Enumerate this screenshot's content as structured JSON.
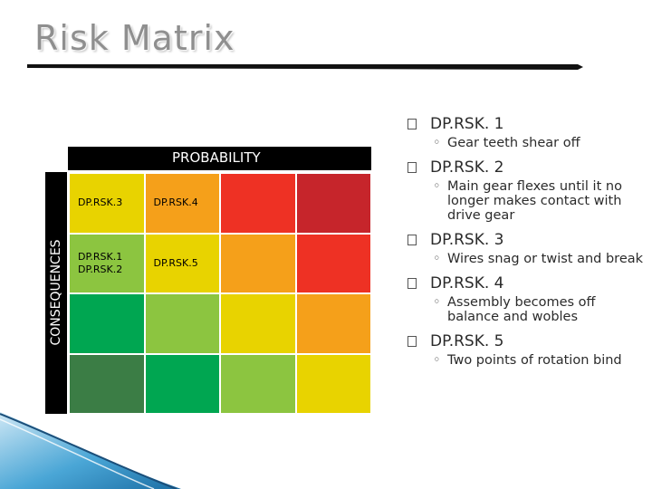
{
  "slide": {
    "title": "Risk Matrix"
  },
  "matrix": {
    "probability_label": "PROBABILITY",
    "consequences_label": "CONSEQUENCES",
    "rows": [
      {
        "cells": [
          {
            "color": "#e8d300",
            "labels": [
              "DP.RSK.3"
            ]
          },
          {
            "color": "#f5a01a",
            "labels": [
              "DP.RSK.4"
            ]
          },
          {
            "color": "#ee3124",
            "labels": []
          },
          {
            "color": "#c6252b",
            "labels": []
          }
        ]
      },
      {
        "cells": [
          {
            "color": "#8cc540",
            "labels": [
              "DP.RSK.1",
              "DP.RSK.2"
            ]
          },
          {
            "color": "#e8d300",
            "labels": [
              "DP.RSK.5"
            ]
          },
          {
            "color": "#f5a01a",
            "labels": []
          },
          {
            "color": "#ee3124",
            "labels": []
          }
        ]
      },
      {
        "cells": [
          {
            "color": "#00a651",
            "labels": []
          },
          {
            "color": "#8cc540",
            "labels": []
          },
          {
            "color": "#e8d300",
            "labels": []
          },
          {
            "color": "#f5a01a",
            "labels": []
          }
        ]
      },
      {
        "cells": [
          {
            "color": "#3b7d45",
            "labels": []
          },
          {
            "color": "#00a651",
            "labels": []
          },
          {
            "color": "#8cc540",
            "labels": []
          },
          {
            "color": "#e8d300",
            "labels": []
          }
        ]
      }
    ]
  },
  "bullets": [
    {
      "title": "DP.RSK. 1",
      "sub": "Gear teeth shear off"
    },
    {
      "title": "DP.RSK. 2",
      "sub": "Main gear flexes until it no longer makes contact with drive gear"
    },
    {
      "title": "DP.RSK. 3",
      "sub": "Wires snag  or twist and break"
    },
    {
      "title": "DP.RSK. 4",
      "sub": "Assembly becomes off balance and wobles"
    },
    {
      "title": "DP.RSK. 5",
      "sub": "Two points of rotation bind"
    }
  ],
  "icons": {
    "bullet_marker": "square-bullet-icon",
    "sub_marker": "circle-bullet-icon"
  }
}
